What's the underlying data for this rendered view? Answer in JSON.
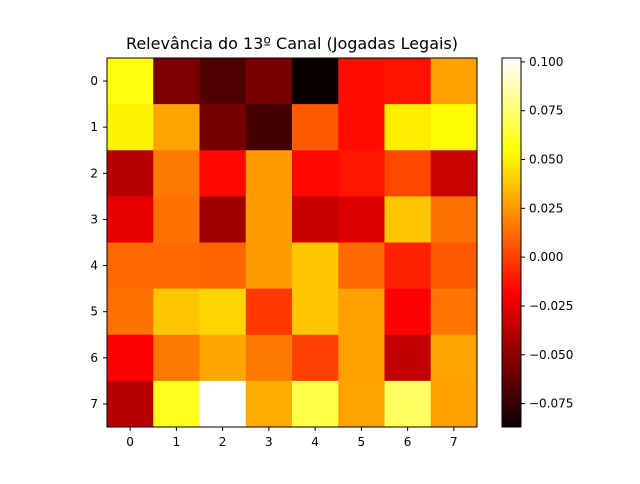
{
  "chart_data": {
    "type": "heatmap",
    "title": "Relevância do 13º Canal (Jogadas Legais)",
    "xlabel": "",
    "ylabel": "",
    "x_ticks": [
      "0",
      "1",
      "2",
      "3",
      "4",
      "5",
      "6",
      "7"
    ],
    "y_ticks": [
      "0",
      "1",
      "2",
      "3",
      "4",
      "5",
      "6",
      "7"
    ],
    "colormap": "hot",
    "colorbar": {
      "vmin": -0.087,
      "vmax": 0.102,
      "ticks": [
        0.1,
        0.075,
        0.05,
        0.025,
        0.0,
        -0.025,
        -0.05,
        -0.075
      ],
      "tick_labels": [
        "0.100",
        "0.075",
        "0.050",
        "0.025",
        "0.000",
        "−0.025",
        "−0.050",
        "−0.075"
      ]
    },
    "values": [
      [
        0.057,
        -0.056,
        -0.068,
        -0.057,
        -0.087,
        -0.015,
        -0.013,
        0.027
      ],
      [
        0.051,
        0.028,
        -0.058,
        -0.072,
        0.007,
        -0.015,
        0.049,
        0.053
      ],
      [
        -0.04,
        0.016,
        -0.016,
        0.026,
        -0.016,
        -0.012,
        0.002,
        -0.035
      ],
      [
        -0.027,
        0.014,
        -0.046,
        0.026,
        -0.036,
        -0.03,
        0.038,
        0.014
      ],
      [
        0.012,
        0.012,
        0.01,
        0.026,
        0.038,
        0.012,
        -0.009,
        0.007
      ],
      [
        0.014,
        0.038,
        0.042,
        -0.002,
        0.038,
        0.027,
        -0.018,
        0.015
      ],
      [
        -0.018,
        0.016,
        0.029,
        0.016,
        0.0,
        0.027,
        -0.038,
        0.028
      ],
      [
        -0.04,
        0.059,
        0.102,
        0.031,
        0.068,
        0.028,
        0.072,
        0.027
      ]
    ]
  }
}
